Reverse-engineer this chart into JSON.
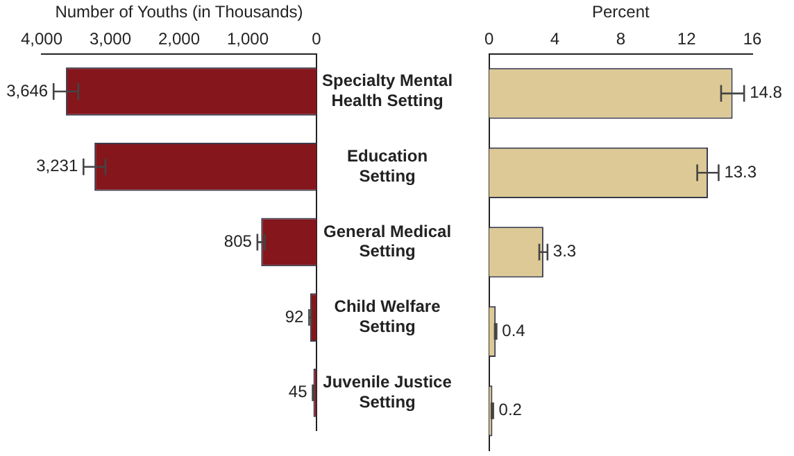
{
  "chart_data": [
    {
      "type": "bar",
      "orientation": "horizontal",
      "xlabel": "Number of Youths (in Thousands)",
      "categories": [
        "Specialty Mental Health Setting",
        "Education Setting",
        "General Medical Setting",
        "Child Welfare Setting",
        "Juvenile Justice Setting"
      ],
      "values": [
        3646,
        3231,
        805,
        92,
        45
      ],
      "errors": [
        180,
        160,
        55,
        15,
        10
      ],
      "value_labels": [
        "3,646",
        "3,231",
        "805",
        "92",
        "45"
      ],
      "color": "#84161c",
      "xlim": [
        4000,
        0
      ],
      "xticks": [
        {
          "value": 4000,
          "label": "4,000"
        },
        {
          "value": 3000,
          "label": "3,000"
        },
        {
          "value": 2000,
          "label": "2,000"
        },
        {
          "value": 1000,
          "label": "1,000"
        },
        0
      ]
    },
    {
      "type": "bar",
      "orientation": "horizontal",
      "xlabel": "Percent",
      "categories": [
        null,
        null,
        null,
        null,
        null
      ],
      "values": [
        14.8,
        13.3,
        3.3,
        0.4,
        0.2
      ],
      "errors": [
        0.7,
        0.65,
        0.25,
        0.05,
        0.05
      ],
      "data_labels": true,
      "color": "#dcc995",
      "xlim": [
        0,
        16
      ],
      "xticks": [
        0,
        4,
        8,
        12,
        16
      ],
      "tick_labels": "x"
    }
  ]
}
